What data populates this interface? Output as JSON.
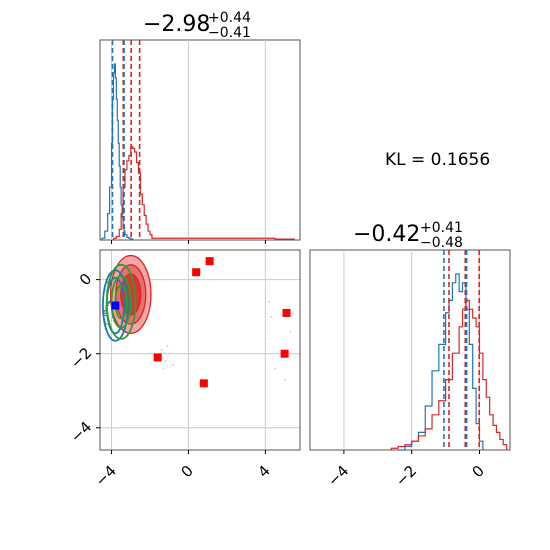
{
  "chart_data": [
    {
      "type": "histogram",
      "panel": "marginal-x",
      "title": {
        "main": "−2.98",
        "sup": "+0.44",
        "sub": "−0.41"
      },
      "xlim": [
        -4.6,
        5.8
      ],
      "grid": true,
      "series": [
        {
          "name": "",
          "color": "#1f77b4",
          "x": [
            -4.5,
            -4.35,
            -4.2,
            -4.1,
            -4.0,
            -3.95,
            -3.9,
            -3.85,
            -3.8,
            -3.75,
            -3.7,
            -3.65,
            -3.6,
            -3.55,
            -3.5,
            -3.45,
            -3.4,
            -3.35,
            -3.3,
            -3.2,
            -3.1,
            -3.0,
            -2.9
          ],
          "y": [
            0.01,
            0.05,
            0.15,
            0.3,
            0.55,
            0.8,
            0.95,
            1.0,
            0.92,
            0.8,
            0.68,
            0.55,
            0.42,
            0.3,
            0.2,
            0.13,
            0.08,
            0.05,
            0.03,
            0.015,
            0.01,
            0.005,
            0.0
          ],
          "quantiles": [
            -3.95,
            -3.35
          ]
        },
        {
          "name": "",
          "color": "#d62728",
          "x": [
            -3.9,
            -3.75,
            -3.6,
            -3.5,
            -3.4,
            -3.3,
            -3.2,
            -3.1,
            -3.0,
            -2.9,
            -2.8,
            -2.7,
            -2.6,
            -2.5,
            -2.4,
            -2.3,
            -2.2,
            -2.1,
            -2.0,
            -1.9,
            4.5,
            5.0,
            5.5
          ],
          "y": [
            0.01,
            0.02,
            0.06,
            0.15,
            0.3,
            0.4,
            0.45,
            0.48,
            0.53,
            0.52,
            0.5,
            0.44,
            0.38,
            0.26,
            0.2,
            0.14,
            0.09,
            0.05,
            0.03,
            0.01,
            0.005,
            0.005,
            0.005
          ],
          "quantiles": [
            -3.39,
            -2.98,
            -2.54
          ]
        }
      ]
    },
    {
      "type": "scatter",
      "panel": "joint",
      "xlim": [
        -4.6,
        5.8
      ],
      "ylim": [
        -4.6,
        0.8
      ],
      "xticks": [
        "−4",
        "0",
        "4"
      ],
      "yticks": [
        "0",
        "−2",
        "−4"
      ],
      "grid": true,
      "points": {
        "name": "",
        "color": "#ff0000",
        "marker": "square",
        "x": [
          0.4,
          1.1,
          -1.6,
          0.8,
          5.1,
          5.0
        ],
        "y": [
          0.2,
          0.5,
          -2.1,
          -2.8,
          -0.9,
          -2.0
        ]
      },
      "marker_point": {
        "color": "#0000ff",
        "marker": "square",
        "x": [
          -3.8
        ],
        "y": [
          -0.7
        ]
      },
      "contours": [
        {
          "color": "#d62728",
          "filled": true,
          "cx": -3.0,
          "cy": -0.4,
          "levels_r": [
            [
              1.05,
              1.05
            ],
            [
              0.78,
              0.8
            ],
            [
              0.52,
              0.55
            ]
          ]
        },
        {
          "color": "#1f77b4",
          "filled": false,
          "cx": -3.8,
          "cy": -0.7,
          "levels_r": [
            [
              0.65,
              0.95
            ],
            [
              0.45,
              0.75
            ]
          ]
        },
        {
          "color": "#2ca02c",
          "filled": false,
          "cx": -3.5,
          "cy": -0.6,
          "levels_r": [
            [
              0.75,
              1.0
            ],
            [
              0.5,
              0.7
            ],
            [
              0.3,
              0.45
            ]
          ]
        }
      ]
    },
    {
      "type": "histogram",
      "panel": "marginal-y",
      "title": {
        "main": "−0.42",
        "sup": "+0.41",
        "sub": "−0.48"
      },
      "xlim": [
        -5.0,
        0.9
      ],
      "xticks": [
        "−4",
        "−2",
        "0"
      ],
      "grid": true,
      "series": [
        {
          "name": "",
          "color": "#1f77b4",
          "x": [
            -2.4,
            -2.2,
            -2.0,
            -1.8,
            -1.6,
            -1.4,
            -1.2,
            -1.0,
            -0.9,
            -0.8,
            -0.7,
            -0.6,
            -0.5,
            -0.4,
            -0.3,
            -0.2,
            -0.1,
            0.0,
            0.1
          ],
          "y": [
            0.0,
            0.02,
            0.05,
            0.1,
            0.25,
            0.45,
            0.6,
            0.78,
            0.85,
            0.95,
            1.0,
            0.9,
            0.95,
            0.8,
            0.6,
            0.35,
            0.15,
            0.05,
            0.0
          ],
          "quantiles": [
            -1.05,
            -0.38
          ]
        },
        {
          "name": "",
          "color": "#d62728",
          "x": [
            -2.6,
            -2.4,
            -2.2,
            -2.0,
            -1.8,
            -1.6,
            -1.4,
            -1.2,
            -1.0,
            -0.8,
            -0.6,
            -0.5,
            -0.4,
            -0.3,
            -0.2,
            -0.1,
            0.0,
            0.1,
            0.2,
            0.3,
            0.4,
            0.5,
            0.6,
            0.7,
            0.8
          ],
          "y": [
            0.01,
            0.02,
            0.03,
            0.05,
            0.08,
            0.12,
            0.2,
            0.28,
            0.4,
            0.55,
            0.7,
            0.8,
            0.85,
            0.8,
            0.75,
            0.7,
            0.55,
            0.4,
            0.3,
            0.2,
            0.14,
            0.1,
            0.06,
            0.03,
            0.01
          ],
          "quantiles": [
            -0.9,
            -0.42,
            -0.01
          ]
        }
      ]
    }
  ],
  "annotation": {
    "kl_text": "KL = 0.1656"
  }
}
